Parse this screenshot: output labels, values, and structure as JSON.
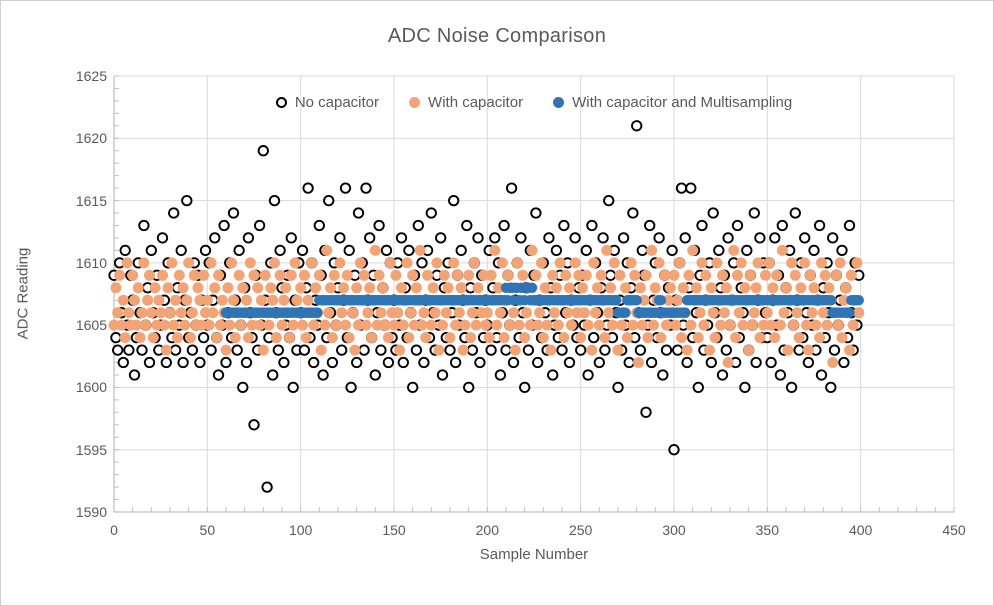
{
  "window": {
    "background": "#ffffff",
    "border_color": "#d0cece"
  },
  "chart": {
    "text_color": "#595959",
    "gridline_color": "#d9d9d9",
    "axis_line_color": "#bfbfbf"
  },
  "chart_data": {
    "type": "scatter",
    "title": "ADC Noise Comparison",
    "xlabel": "Sample Number",
    "ylabel": "ADC Reading",
    "xlim": [
      0,
      450
    ],
    "ylim": [
      1590,
      1625
    ],
    "x_major_tick": 50,
    "x_minor_tick": 10,
    "y_major_tick": 5,
    "y_minor_tick": 1,
    "grid": true,
    "legend_position": "top-inside",
    "x_ticks": [
      "0",
      "50",
      "100",
      "150",
      "200",
      "250",
      "300",
      "350",
      "400",
      "450"
    ],
    "y_ticks": [
      "1590",
      "1595",
      "1600",
      "1605",
      "1610",
      "1615",
      "1620",
      "1625"
    ],
    "series": [
      {
        "name": "No capacitor",
        "marker": "open-circle",
        "color": "#000000",
        "x_start": 0,
        "y": [
          1609,
          1604,
          1603,
          1610,
          1606,
          1602,
          1611,
          1605,
          1603,
          1609,
          1607,
          1601,
          1604,
          1610,
          1606,
          1603,
          1613,
          1605,
          1608,
          1602,
          1611,
          1606,
          1604,
          1609,
          1603,
          1605,
          1612,
          1607,
          1602,
          1610,
          1606,
          1604,
          1614,
          1603,
          1608,
          1605,
          1611,
          1602,
          1607,
          1615,
          1604,
          1606,
          1603,
          1610,
          1605,
          1609,
          1602,
          1607,
          1604,
          1611,
          1605,
          1610,
          1603,
          1607,
          1612,
          1604,
          1601,
          1609,
          1605,
          1613,
          1602,
          1606,
          1610,
          1604,
          1614,
          1607,
          1603,
          1611,
          1605,
          1600,
          1608,
          1602,
          1612,
          1606,
          1604,
          1597,
          1609,
          1603,
          1613,
          1605,
          1619,
          1607,
          1592,
          1604,
          1610,
          1601,
          1615,
          1606,
          1603,
          1611,
          1608,
          1602,
          1605,
          1609,
          1604,
          1612,
          1600,
          1607,
          1603,
          1610,
          1606,
          1611,
          1603,
          1608,
          1616,
          1604,
          1610,
          1602,
          1607,
          1605,
          1613,
          1609,
          1601,
          1611,
          1604,
          1615,
          1606,
          1602,
          1610,
          1605,
          1608,
          1612,
          1603,
          1607,
          1616,
          1604,
          1611,
          1600,
          1606,
          1609,
          1602,
          1614,
          1605,
          1610,
          1603,
          1616,
          1607,
          1612,
          1604,
          1609,
          1601,
          1606,
          1613,
          1603,
          1608,
          1605,
          1611,
          1602,
          1610,
          1604,
          1607,
          1603,
          1610,
          1605,
          1612,
          1602,
          1608,
          1604,
          1611,
          1606,
          1600,
          1609,
          1603,
          1613,
          1605,
          1610,
          1602,
          1607,
          1611,
          1604,
          1614,
          1606,
          1603,
          1609,
          1605,
          1612,
          1601,
          1608,
          1604,
          1610,
          1603,
          1606,
          1615,
          1602,
          1609,
          1605,
          1611,
          1607,
          1604,
          1613,
          1600,
          1608,
          1603,
          1610,
          1606,
          1612,
          1602,
          1609,
          1604,
          1607,
          1605,
          1611,
          1603,
          1608,
          1612,
          1604,
          1610,
          1601,
          1606,
          1613,
          1603,
          1609,
          1605,
          1616,
          1602,
          1607,
          1610,
          1604,
          1612,
          1606,
          1600,
          1608,
          1603,
          1611,
          1605,
          1609,
          1614,
          1602,
          1607,
          1604,
          1610,
          1606,
          1603,
          1612,
          1608,
          1601,
          1605,
          1611,
          1604,
          1609,
          1603,
          1613,
          1606,
          1610,
          1602,
          1607,
          1605,
          1612,
          1604,
          1608,
          1603,
          1609,
          1605,
          1611,
          1601,
          1607,
          1613,
          1604,
          1610,
          1606,
          1602,
          1608,
          1612,
          1603,
          1605,
          1615,
          1609,
          1604,
          1611,
          1606,
          1600,
          1607,
          1603,
          1612,
          1605,
          1610,
          1602,
          1608,
          1614,
          1604,
          1621,
          1606,
          1603,
          1611,
          1609,
          1598,
          1605,
          1613,
          1602,
          1607,
          1610,
          1604,
          1612,
          1606,
          1601,
          1609,
          1603,
          1608,
          1605,
          1611,
          1595,
          1607,
          1603,
          1610,
          1616,
          1605,
          1612,
          1602,
          1608,
          1616,
          1604,
          1611,
          1606,
          1600,
          1609,
          1613,
          1603,
          1607,
          1605,
          1610,
          1602,
          1614,
          1606,
          1604,
          1611,
          1608,
          1601,
          1609,
          1603,
          1612,
          1605,
          1607,
          1610,
          1602,
          1613,
          1604,
          1608,
          1606,
          1600,
          1611,
          1603,
          1609,
          1605,
          1614,
          1602,
          1607,
          1612,
          1604,
          1610,
          1606,
          1604,
          1610,
          1602,
          1607,
          1612,
          1605,
          1609,
          1601,
          1613,
          1603,
          1608,
          1606,
          1611,
          1600,
          1605,
          1614,
          1607,
          1603,
          1610,
          1604,
          1612,
          1606,
          1602,
          1609,
          1605,
          1611,
          1603,
          1607,
          1613,
          1601,
          1608,
          1604,
          1610,
          1606,
          1600,
          1612,
          1603,
          1609,
          1605,
          1607,
          1611,
          1602,
          1608,
          1604,
          1613,
          1606,
          1603,
          1610,
          1605,
          1609
        ]
      },
      {
        "name": "With capacitor",
        "marker": "filled-circle",
        "color": "#f2a477",
        "x_start": 0,
        "y": [
          1605,
          1608,
          1606,
          1609,
          1605,
          1607,
          1604,
          1610,
          1606,
          1605,
          1609,
          1607,
          1605,
          1608,
          1604,
          1606,
          1610,
          1605,
          1607,
          1609,
          1606,
          1604,
          1608,
          1605,
          1607,
          1606,
          1609,
          1605,
          1603,
          1608,
          1606,
          1610,
          1605,
          1607,
          1604,
          1609,
          1606,
          1608,
          1605,
          1607,
          1610,
          1604,
          1606,
          1609,
          1605,
          1608,
          1607,
          1605,
          1609,
          1606,
          1607,
          1605,
          1610,
          1606,
          1608,
          1604,
          1609,
          1605,
          1607,
          1606,
          1603,
          1608,
          1605,
          1610,
          1607,
          1604,
          1606,
          1609,
          1605,
          1608,
          1606,
          1607,
          1604,
          1610,
          1605,
          1609,
          1606,
          1608,
          1605,
          1607,
          1603,
          1609,
          1606,
          1605,
          1608,
          1607,
          1610,
          1604,
          1606,
          1609,
          1605,
          1607,
          1608,
          1606,
          1604,
          1609,
          1605,
          1610,
          1607,
          1606,
          1608,
          1605,
          1609,
          1604,
          1607,
          1606,
          1610,
          1605,
          1608,
          1606,
          1609,
          1603,
          1607,
          1605,
          1611,
          1606,
          1608,
          1604,
          1609,
          1605,
          1607,
          1610,
          1606,
          1608,
          1605,
          1609,
          1604,
          1607,
          1606,
          1603,
          1608,
          1605,
          1610,
          1607,
          1609,
          1605,
          1606,
          1608,
          1604,
          1607,
          1611,
          1605,
          1609,
          1606,
          1608,
          1605,
          1607,
          1604,
          1610,
          1606,
          1605,
          1609,
          1606,
          1603,
          1608,
          1605,
          1607,
          1610,
          1604,
          1606,
          1609,
          1605,
          1608,
          1607,
          1611,
          1605,
          1606,
          1604,
          1609,
          1607,
          1605,
          1608,
          1606,
          1610,
          1603,
          1607,
          1605,
          1609,
          1606,
          1608,
          1604,
          1607,
          1610,
          1605,
          1609,
          1606,
          1608,
          1603,
          1605,
          1607,
          1609,
          1604,
          1606,
          1610,
          1605,
          1608,
          1607,
          1606,
          1609,
          1605,
          1606,
          1604,
          1609,
          1607,
          1611,
          1605,
          1608,
          1606,
          1610,
          1604,
          1607,
          1609,
          1605,
          1608,
          1606,
          1603,
          1610,
          1605,
          1607,
          1609,
          1604,
          1606,
          1608,
          1605,
          1611,
          1607,
          1609,
          1605,
          1606,
          1610,
          1604,
          1608,
          1605,
          1607,
          1603,
          1609,
          1606,
          1608,
          1605,
          1610,
          1607,
          1604,
          1609,
          1606,
          1608,
          1605,
          1607,
          1610,
          1606,
          1609,
          1604,
          1608,
          1606,
          1609,
          1605,
          1607,
          1603,
          1610,
          1606,
          1608,
          1605,
          1609,
          1607,
          1604,
          1611,
          1606,
          1608,
          1605,
          1610,
          1607,
          1603,
          1609,
          1605,
          1606,
          1608,
          1604,
          1607,
          1610,
          1605,
          1609,
          1606,
          1602,
          1608,
          1605,
          1607,
          1609,
          1604,
          1606,
          1611,
          1605,
          1608,
          1607,
          1610,
          1604,
          1606,
          1609,
          1605,
          1607,
          1608,
          1606,
          1609,
          1605,
          1607,
          1610,
          1604,
          1608,
          1606,
          1603,
          1609,
          1605,
          1611,
          1607,
          1608,
          1604,
          1606,
          1610,
          1605,
          1609,
          1607,
          1603,
          1608,
          1606,
          1604,
          1610,
          1607,
          1605,
          1609,
          1606,
          1608,
          1602,
          1605,
          1607,
          1611,
          1604,
          1609,
          1606,
          1610,
          1605,
          1608,
          1607,
          1603,
          1609,
          1605,
          1606,
          1608,
          1610,
          1604,
          1607,
          1605,
          1609,
          1606,
          1610,
          1605,
          1608,
          1604,
          1609,
          1607,
          1605,
          1611,
          1606,
          1608,
          1603,
          1607,
          1610,
          1605,
          1609,
          1606,
          1604,
          1608,
          1607,
          1610,
          1605,
          1603,
          1609,
          1606,
          1608,
          1605,
          1607,
          1604,
          1610,
          1606,
          1609,
          1605,
          1608,
          1607,
          1602,
          1606,
          1609,
          1605,
          1610,
          1604,
          1607,
          1608,
          1606,
          1603,
          1609,
          1605,
          1607,
          1610,
          1606
        ]
      },
      {
        "name": "With capacitor and Multisampling",
        "marker": "filled-circle",
        "color": "#2e75b6",
        "x_start": 60,
        "runs": [
          [
            1606,
            50
          ],
          [
            1607,
            100
          ],
          [
            1608,
            1
          ],
          [
            1607,
            1
          ],
          [
            1608,
            2
          ],
          [
            1607,
            1
          ],
          [
            1608,
            2
          ],
          [
            1607,
            1
          ],
          [
            1608,
            2
          ],
          [
            1607,
            1
          ],
          [
            1608,
            2
          ],
          [
            1607,
            1
          ],
          [
            1608,
            1
          ],
          [
            1607,
            1
          ],
          [
            1607,
            44
          ],
          [
            1606,
            5
          ],
          [
            1607,
            6
          ],
          [
            1606,
            11
          ],
          [
            1607,
            2
          ],
          [
            1606,
            13
          ],
          [
            1607,
            78
          ],
          [
            1606,
            10
          ],
          [
            1607,
            5
          ]
        ]
      }
    ]
  }
}
